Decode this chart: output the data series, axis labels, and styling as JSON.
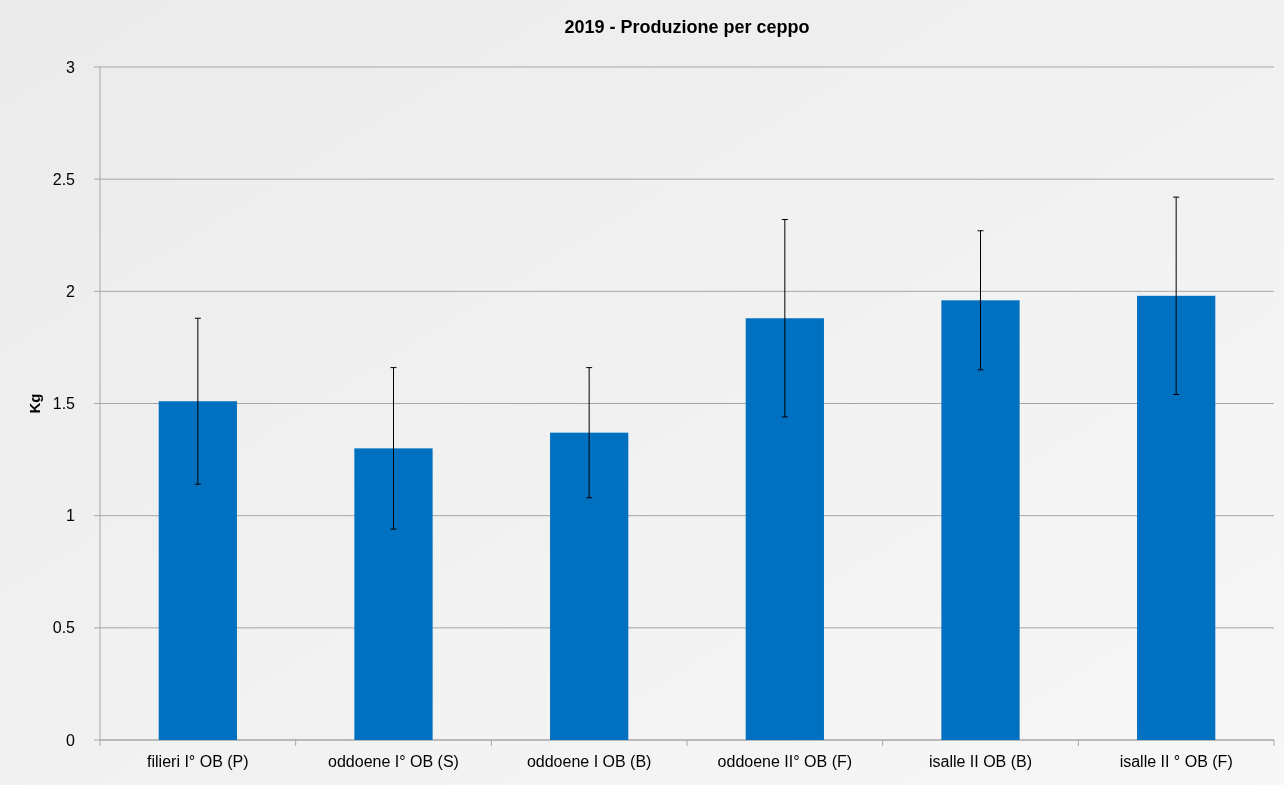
{
  "chart_data": {
    "type": "bar",
    "title": "2019 - Produzione per ceppo",
    "ylabel": "Kg",
    "categories": [
      "filieri I° OB (P)",
      "oddoene I° OB (S)",
      "oddoene I OB (B)",
      "oddoene II° OB (F)",
      "isalle II OB (B)",
      "isalle II ° OB (F)"
    ],
    "values": [
      1.51,
      1.3,
      1.37,
      1.88,
      1.96,
      1.98
    ],
    "errors": [
      [
        1.14,
        1.88
      ],
      [
        0.94,
        1.66
      ],
      [
        1.08,
        1.66
      ],
      [
        1.44,
        2.32
      ],
      [
        1.65,
        2.27
      ],
      [
        1.54,
        2.42
      ]
    ],
    "color": "#0070c0",
    "ylim": [
      0,
      3
    ],
    "yticks": [
      0,
      0.5,
      1,
      1.5,
      2,
      2.5,
      3
    ],
    "grid": "y"
  }
}
